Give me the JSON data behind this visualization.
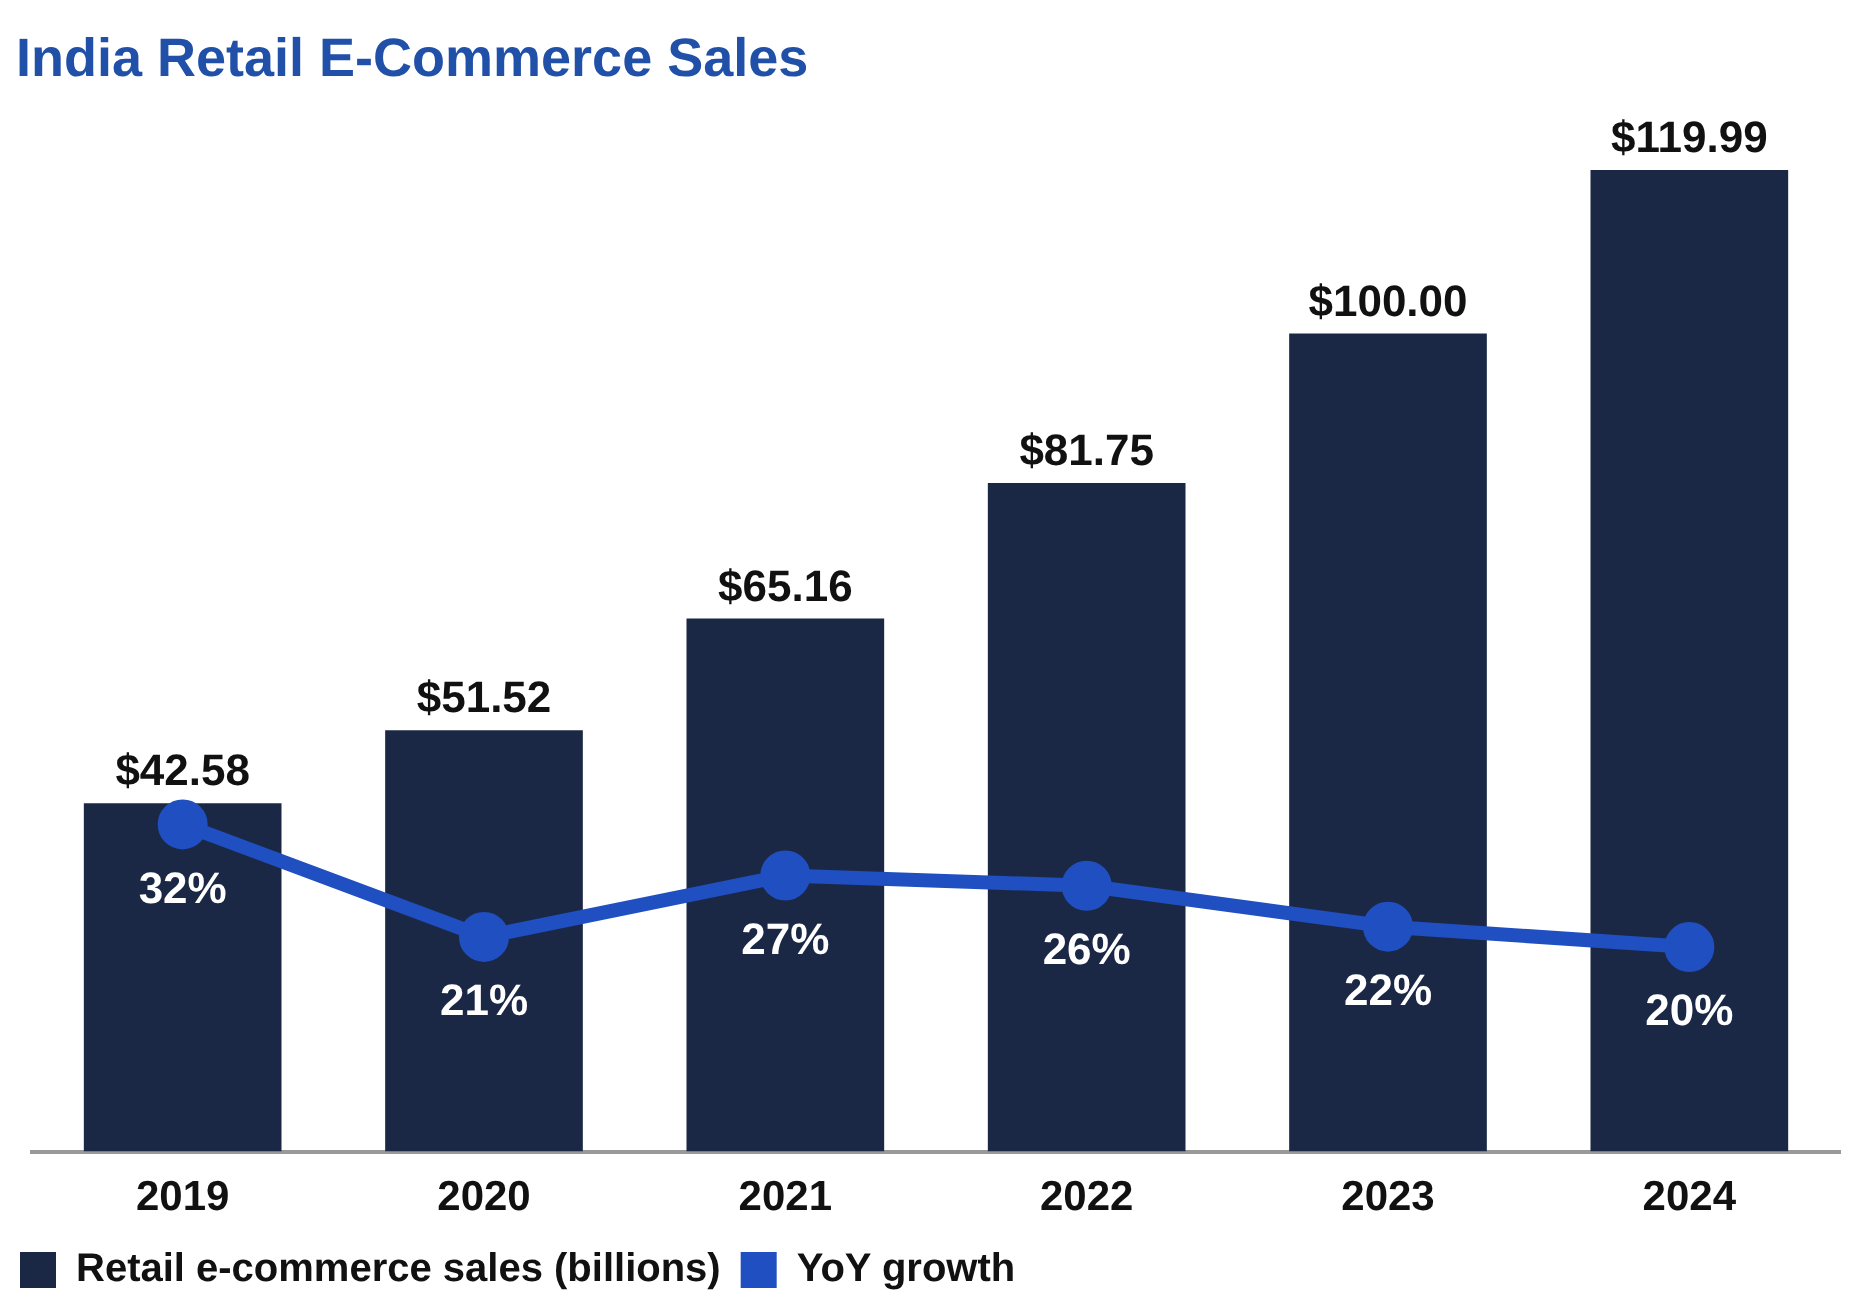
{
  "chart_data": {
    "type": "bar",
    "title": "India Retail E-Commerce Sales",
    "categories": [
      "2019",
      "2020",
      "2021",
      "2022",
      "2023",
      "2024"
    ],
    "series": [
      {
        "name": "Retail e-commerce sales (billions)",
        "color": "#1b2845",
        "values": [
          42.58,
          51.52,
          65.16,
          81.75,
          100.0,
          119.99
        ],
        "value_labels": [
          "$42.58",
          "$51.52",
          "$65.16",
          "$81.75",
          "$100.00",
          "$119.99"
        ]
      },
      {
        "name": "YoY growth",
        "type": "line",
        "axis": "y2",
        "color": "#1f4fc1",
        "values": [
          32,
          21,
          27,
          26,
          22,
          20
        ],
        "value_labels": [
          "32%",
          "21%",
          "27%",
          "26%",
          "22%",
          "20%"
        ]
      }
    ],
    "legend": "bottom left",
    "grid": false,
    "tick_labels": "x",
    "marker": "circle"
  }
}
